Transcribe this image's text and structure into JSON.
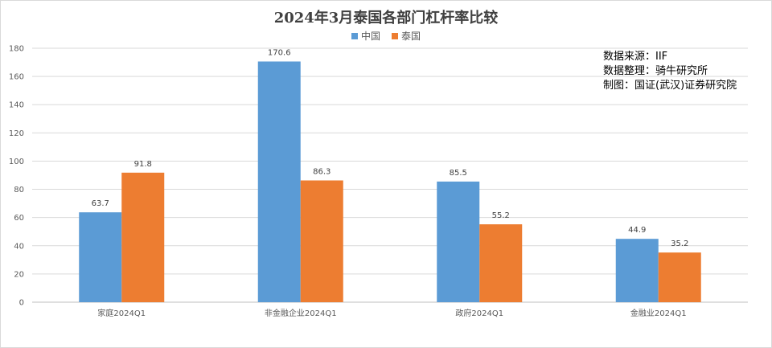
{
  "colors": {
    "series_china": "#5b9bd5",
    "series_thailand": "#ed7d31",
    "gridline": "#d9d9d9",
    "axis": "#bfbfbf"
  },
  "source_notes": [
    "数据来源：IIF",
    "数据整理：骑牛研究所",
    "制图：国证(武汉)证券研究院"
  ],
  "chart_data": {
    "type": "bar",
    "title": "2024年3月泰国各部门杠杆率比较",
    "xlabel": "",
    "ylabel": "",
    "ylim": [
      0,
      180
    ],
    "yticks": [
      0,
      20,
      40,
      60,
      80,
      100,
      120,
      140,
      160,
      180
    ],
    "grid": true,
    "legend_position": "top-center",
    "categories": [
      "家庭2024Q1",
      "非金融企业2024Q1",
      "政府2024Q1",
      "金融业2024Q1"
    ],
    "series": [
      {
        "name": "中国",
        "values": [
          63.7,
          170.6,
          85.5,
          44.9
        ],
        "labels": [
          "63.7",
          "170.6",
          "85.5",
          "44.9"
        ]
      },
      {
        "name": "泰国",
        "values": [
          91.8,
          86.3,
          55.2,
          35.2
        ],
        "labels": [
          "91.8",
          "86.3",
          "55.2",
          "35.2"
        ]
      }
    ]
  }
}
